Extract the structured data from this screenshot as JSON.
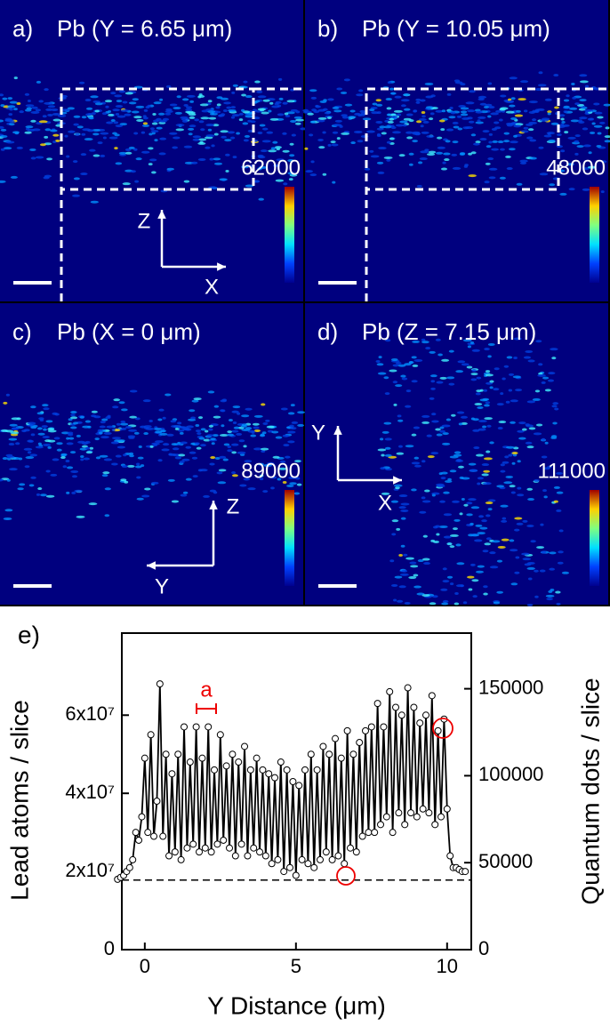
{
  "panels": [
    {
      "label": "a)",
      "title": "Pb (Y = 6.65 μm)",
      "max": 62000,
      "axes": [
        "Z",
        "X"
      ]
    },
    {
      "label": "b)",
      "title": "Pb (Y = 10.05 μm)",
      "max": 48000,
      "axes": []
    },
    {
      "label": "c)",
      "title": "Pb (X = 0 μm)",
      "max": 89000,
      "axes": [
        "Z",
        "Y"
      ]
    },
    {
      "label": "d)",
      "title": "Pb (Z = 7.15 μm)",
      "max": 111000,
      "axes": [
        "Y",
        "X"
      ]
    }
  ],
  "chart_data": {
    "type": "line",
    "label": "e)",
    "x_label": "Y Distance (μm)",
    "y_label": "Lead atoms / slice",
    "y2_label": "Quantum dots / slice",
    "annotation": "a",
    "color": "#000000",
    "xlim": [
      -0.76,
      10.8
    ],
    "xticks": [
      0,
      5,
      10
    ],
    "ylim": [
      0,
      81000000
    ],
    "yticks": [
      0,
      {
        "value": 20000000,
        "label": "2x10⁷"
      },
      {
        "value": 40000000,
        "label": "4x10⁷"
      },
      {
        "value": 60000000,
        "label": "6x10⁷"
      }
    ],
    "y2lim": [
      0,
      182000
    ],
    "y2ticks": [
      0,
      50000,
      100000,
      150000
    ],
    "hline": 17800000,
    "x": [
      -0.9,
      -0.8,
      -0.7,
      -0.6,
      -0.5,
      -0.4,
      -0.3,
      -0.2,
      -0.1,
      0.0,
      0.1,
      0.2,
      0.3,
      0.4,
      0.5,
      0.6,
      0.7,
      0.8,
      0.9,
      1.0,
      1.1,
      1.2,
      1.3,
      1.4,
      1.5,
      1.6,
      1.7,
      1.8,
      1.9,
      2.0,
      2.1,
      2.2,
      2.3,
      2.4,
      2.5,
      2.6,
      2.7,
      2.8,
      2.9,
      3.0,
      3.1,
      3.2,
      3.3,
      3.4,
      3.5,
      3.6,
      3.7,
      3.8,
      3.9,
      4.0,
      4.1,
      4.2,
      4.3,
      4.4,
      4.5,
      4.6,
      4.7,
      4.8,
      4.9,
      5.0,
      5.1,
      5.2,
      5.3,
      5.4,
      5.5,
      5.6,
      5.7,
      5.8,
      5.9,
      6.0,
      6.1,
      6.2,
      6.3,
      6.4,
      6.5,
      6.6,
      6.7,
      6.8,
      6.9,
      7.0,
      7.1,
      7.2,
      7.3,
      7.4,
      7.5,
      7.6,
      7.7,
      7.8,
      7.9,
      8.0,
      8.1,
      8.2,
      8.3,
      8.4,
      8.5,
      8.6,
      8.7,
      8.8,
      8.9,
      9.0,
      9.1,
      9.2,
      9.3,
      9.4,
      9.5,
      9.6,
      9.7,
      9.8,
      9.9,
      10.0,
      10.1,
      10.2,
      10.3,
      10.4,
      10.5,
      10.6
    ],
    "values": [
      18000000.0,
      18500000.0,
      19000000.0,
      20000000.0,
      21000000.0,
      23000000.0,
      30000000.0,
      28000000.0,
      34000000.0,
      49000000.0,
      30000000.0,
      55000000.0,
      29000000.0,
      38000000.0,
      68000000.0,
      29000000.0,
      50000000.0,
      24000000.0,
      45000000.0,
      25000000.0,
      50000000.0,
      23000000.0,
      57000000.0,
      26000000.0,
      48000000.0,
      27000000.0,
      57000000.0,
      25000000.0,
      49000000.0,
      26000000.0,
      57000000.0,
      25000000.0,
      46000000.0,
      27000000.0,
      55000000.0,
      28000000.0,
      47000000.0,
      26000000.0,
      50000000.0,
      24000000.0,
      48000000.0,
      27000000.0,
      52000000.0,
      24000000.0,
      46000000.0,
      26000000.0,
      49000000.0,
      25000000.0,
      46000000.0,
      24000000.0,
      45000000.0,
      22000000.0,
      44000000.0,
      23000000.0,
      48000000.0,
      20000000.0,
      46000000.0,
      21000000.0,
      43000000.0,
      19000000.0,
      42000000.0,
      23000000.0,
      46000000.0,
      22000000.0,
      50000000.0,
      21000000.0,
      46000000.0,
      23000000.0,
      52000000.0,
      25000000.0,
      50000000.0,
      23000000.0,
      54000000.0,
      24000000.0,
      49000000.0,
      22000000.0,
      56000000.0,
      26000000.0,
      50000000.0,
      25000000.0,
      53000000.0,
      29000000.0,
      56000000.0,
      30000000.0,
      57000000.0,
      30000000.0,
      63000000.0,
      32000000.0,
      57000000.0,
      34000000.0,
      66000000.0,
      30000000.0,
      62000000.0,
      35000000.0,
      60000000.0,
      32000000.0,
      67000000.0,
      35000000.0,
      62000000.0,
      34000000.0,
      58000000.0,
      36000000.0,
      60000000.0,
      35000000.0,
      65000000.0,
      32000000.0,
      56000000.0,
      34000000.0,
      59000000.0,
      36000000.0,
      24000000.0,
      21000000.0,
      21000000.0,
      20500000.0,
      20000000.0,
      20000000.0
    ]
  }
}
